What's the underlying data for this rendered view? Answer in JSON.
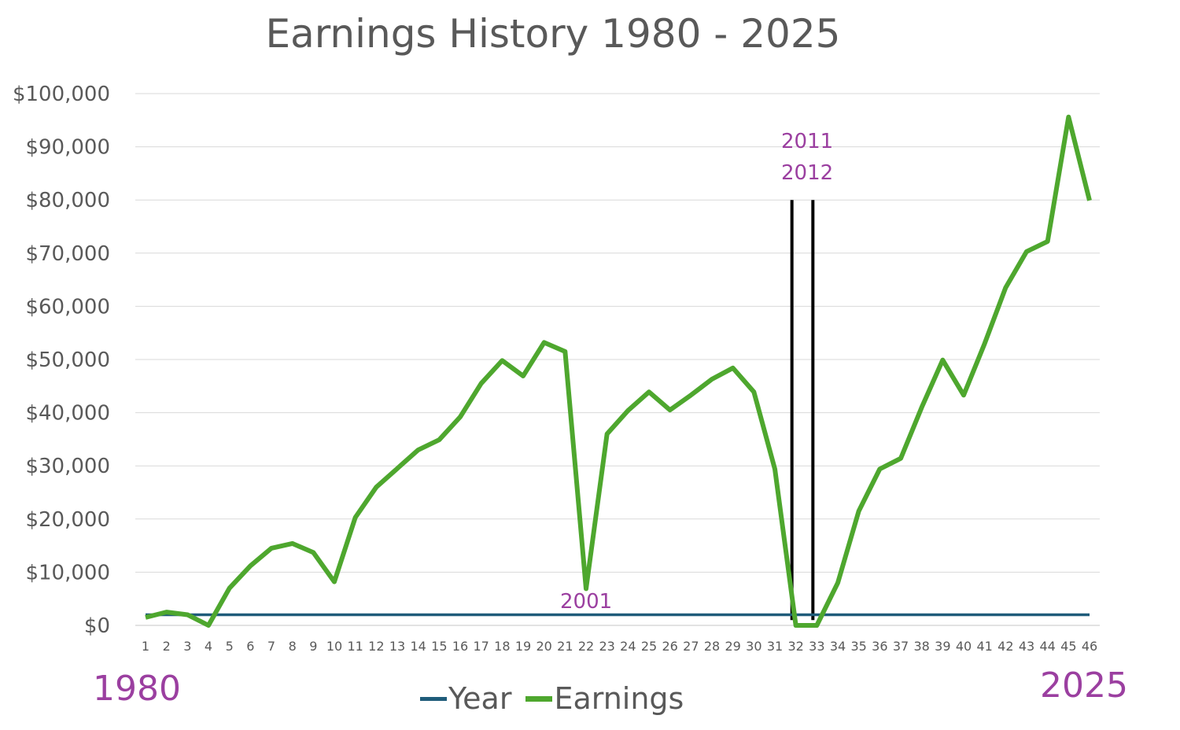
{
  "chart_data": {
    "type": "line",
    "title": "Earnings History 1980 - 2025",
    "x": [
      1,
      2,
      3,
      4,
      5,
      6,
      7,
      8,
      9,
      10,
      11,
      12,
      13,
      14,
      15,
      16,
      17,
      18,
      19,
      20,
      21,
      22,
      23,
      24,
      25,
      26,
      27,
      28,
      29,
      30,
      31,
      32,
      33,
      34,
      35,
      36,
      37,
      38,
      39,
      40,
      41,
      42,
      43,
      44,
      45,
      46
    ],
    "x_tick_labels": [
      "1",
      "2",
      "3",
      "4",
      "5",
      "6",
      "7",
      "8",
      "9",
      "10",
      "11",
      "12",
      "13",
      "14",
      "15",
      "16",
      "17",
      "18",
      "19",
      "20",
      "21",
      "22",
      "23",
      "24",
      "25",
      "26",
      "27",
      "28",
      "29",
      "30",
      "31",
      "32",
      "33",
      "34",
      "35",
      "36",
      "37",
      "38",
      "39",
      "40",
      "41",
      "42",
      "43",
      "44",
      "45",
      "46"
    ],
    "ylim": [
      0,
      100000
    ],
    "y_ticks": [
      0,
      10000,
      20000,
      30000,
      40000,
      50000,
      60000,
      70000,
      80000,
      90000,
      100000
    ],
    "y_tick_labels": [
      "$0",
      "$10,000",
      "$20,000",
      "$30,000",
      "$40,000",
      "$50,000",
      "$60,000",
      "$70,000",
      "$80,000",
      "$90,000",
      "$100,000"
    ],
    "grid": "horizontal",
    "legend_position": "bottom",
    "series": [
      {
        "name": "Year",
        "color": "#1f5c7a",
        "values": [
          2000,
          2000,
          2000,
          2000,
          2000,
          2000,
          2000,
          2000,
          2000,
          2000,
          2000,
          2000,
          2000,
          2000,
          2000,
          2000,
          2000,
          2000,
          2000,
          2000,
          2000,
          2000,
          2000,
          2000,
          2000,
          2000,
          2000,
          2000,
          2000,
          2000,
          2000,
          2000,
          2000,
          2000,
          2000,
          2000,
          2000,
          2000,
          2000,
          2000,
          2000,
          2000,
          2000,
          2000,
          2000,
          2000
        ]
      },
      {
        "name": "Earnings",
        "color": "#4ea72e",
        "values": [
          1500,
          2500,
          2000,
          0,
          7000,
          11200,
          14500,
          15400,
          13700,
          8200,
          20300,
          26000,
          29500,
          33000,
          34900,
          39200,
          45500,
          49800,
          46900,
          53200,
          51500,
          6900,
          36000,
          40400,
          43900,
          40500,
          43300,
          46300,
          48400,
          43900,
          29400,
          0,
          0,
          8000,
          21500,
          29400,
          31400,
          41000,
          49900,
          43300,
          53000,
          63500,
          70300,
          72200,
          95600,
          79900
        ]
      }
    ],
    "annotations": {
      "start_year": "1980",
      "end_year": "2025",
      "dip_year": "2001",
      "gap_year_1": "2011",
      "gap_year_2": "2012"
    },
    "markers": {
      "gap_lines_x": [
        32,
        33
      ],
      "gap_lines_top": 80000,
      "gap_line_color": "#000000"
    },
    "colors": {
      "grid": "#d9d9d9",
      "text": "#595959",
      "annotation": "#9b3fa0"
    }
  }
}
